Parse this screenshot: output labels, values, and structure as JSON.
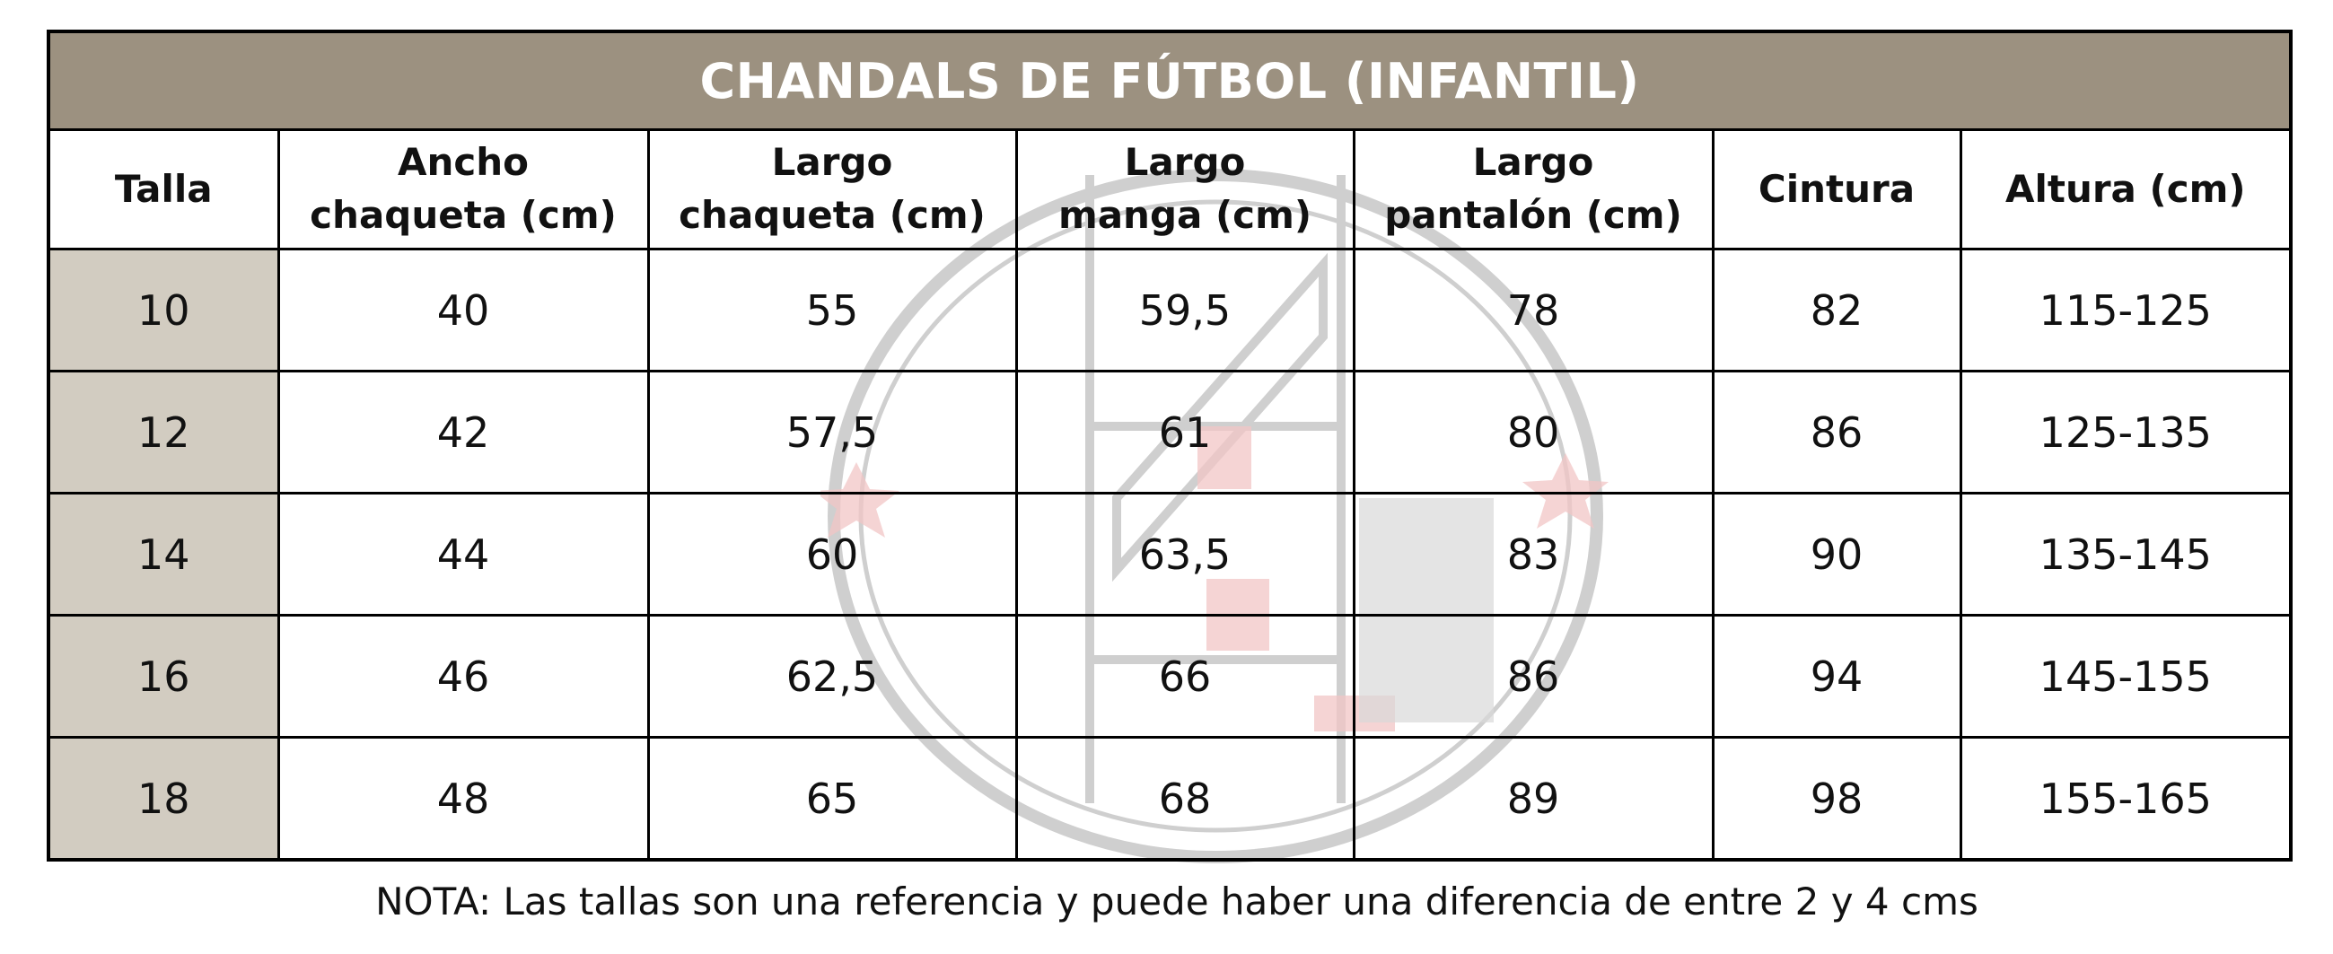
{
  "table": {
    "title": "CHANDALS DE FÚTBOL (INFANTIL)",
    "headers": [
      [
        "Talla"
      ],
      [
        "Ancho",
        "chaqueta (cm)"
      ],
      [
        "Largo",
        "chaqueta (cm)"
      ],
      [
        "Largo",
        "manga (cm)"
      ],
      [
        "Largo",
        "pantalón (cm)"
      ],
      [
        "Cintura"
      ],
      [
        "Altura (cm)"
      ]
    ],
    "rows": [
      [
        "10",
        "40",
        "55",
        "59,5",
        "78",
        "82",
        "115-125"
      ],
      [
        "12",
        "42",
        "57,5",
        "61",
        "80",
        "86",
        "125-135"
      ],
      [
        "14",
        "44",
        "60",
        "63,5",
        "83",
        "90",
        "135-145"
      ],
      [
        "16",
        "46",
        "62,5",
        "66",
        "86",
        "94",
        "145-155"
      ],
      [
        "18",
        "48",
        "65",
        "68",
        "89",
        "98",
        "155-165"
      ]
    ]
  },
  "note": "NOTA: Las tallas son una referencia y puede haber una diferencia de entre 2 y 4 cms",
  "colors": {
    "title_bg": "#9c9180",
    "size_col_bg": "#d2ccc1",
    "watermark_gray": "#cfcfcf",
    "watermark_red": "#f2c6c6"
  }
}
